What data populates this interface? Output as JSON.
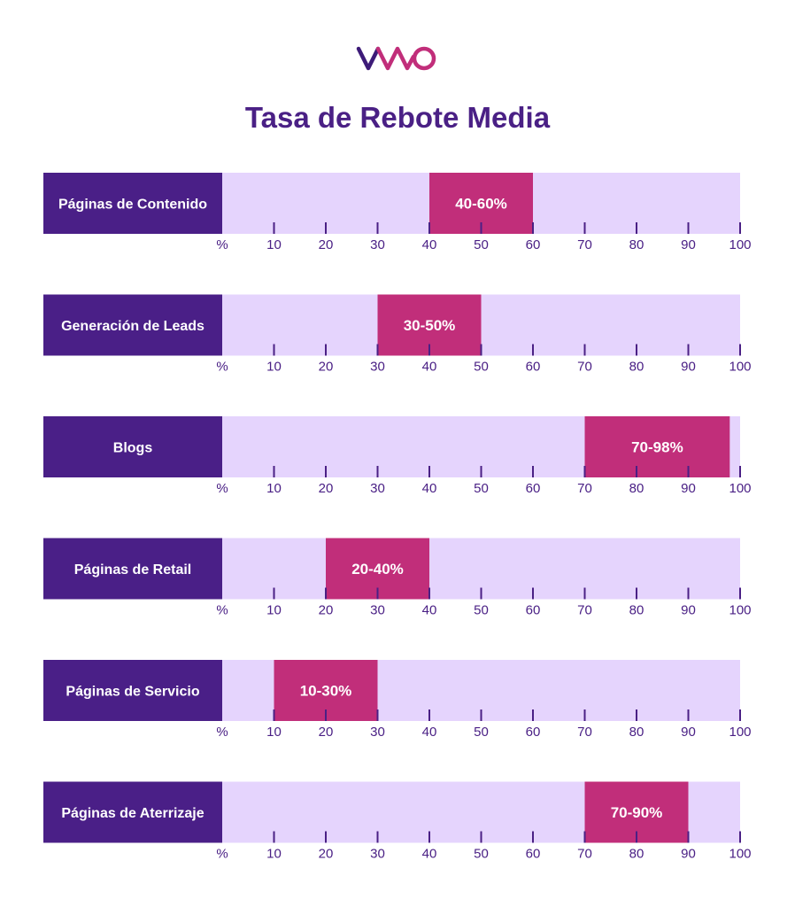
{
  "logo_text": "VWO",
  "chart_data": {
    "type": "bar",
    "title": "Tasa de Rebote Media",
    "axis": {
      "min": 0,
      "max": 100,
      "ticks": [
        10,
        20,
        30,
        40,
        50,
        60,
        70,
        80,
        90,
        100
      ],
      "zero_label": "%"
    },
    "categories": [
      "Páginas de Contenido",
      "Generación de Leads",
      "Blogs",
      "Páginas de Retail",
      "Páginas de Servicio",
      "Páginas de Aterrizaje"
    ],
    "ranges": [
      {
        "min": 40,
        "max": 60,
        "label": "40-60%"
      },
      {
        "min": 30,
        "max": 50,
        "label": "30-50%"
      },
      {
        "min": 70,
        "max": 98,
        "label": "70-98%"
      },
      {
        "min": 20,
        "max": 40,
        "label": "20-40%"
      },
      {
        "min": 10,
        "max": 30,
        "label": "10-30%"
      },
      {
        "min": 70,
        "max": 90,
        "label": "70-90%"
      }
    ],
    "colors": {
      "label_bg": "#4a1f87",
      "track": "#e5d4fd",
      "range": "#c12e7a",
      "tick": "#4a2085"
    }
  }
}
